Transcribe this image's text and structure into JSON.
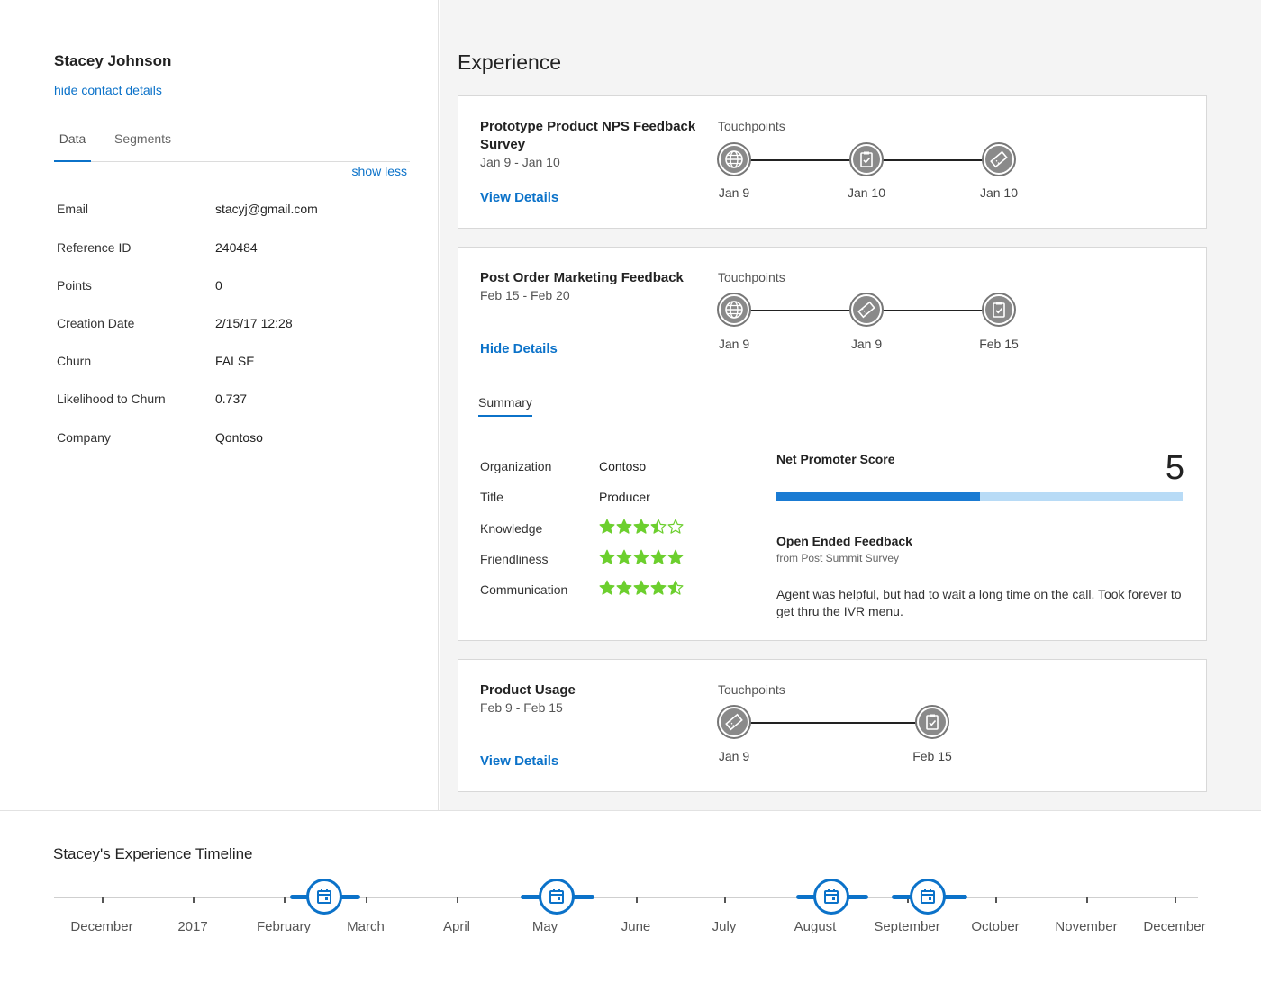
{
  "contact": {
    "name": "Stacey Johnson",
    "hide_details_label": "hide contact details",
    "tabs": [
      "Data",
      "Segments"
    ],
    "show_less_label": "show less",
    "fields": [
      {
        "label": "Email",
        "value": "stacyj@gmail.com"
      },
      {
        "label": "Reference ID",
        "value": "240484"
      },
      {
        "label": "Points",
        "value": "0"
      },
      {
        "label": "Creation Date",
        "value": "2/15/17 12:28"
      },
      {
        "label": "Churn",
        "value": "FALSE"
      },
      {
        "label": "Likelihood to Churn",
        "value": "0.737"
      },
      {
        "label": "Company",
        "value": "Qontoso"
      }
    ]
  },
  "experience": {
    "title": "Experience",
    "touchpoints_label": "Touchpoints",
    "cards": [
      {
        "title": "Prototype Product NPS Feedback Survey",
        "dates": "Jan 9 - Jan 10",
        "link": "View Details",
        "touchpoints": [
          {
            "icon": "globe-icon",
            "date": "Jan 9"
          },
          {
            "icon": "clipboard-icon",
            "date": "Jan 10"
          },
          {
            "icon": "ticket-icon",
            "date": "Jan 10"
          }
        ]
      },
      {
        "title": "Post Order Marketing Feedback",
        "dates": "Feb 15 - Feb 20",
        "link": "Hide Details",
        "touchpoints": [
          {
            "icon": "globe-icon",
            "date": "Jan 9"
          },
          {
            "icon": "ticket-icon",
            "date": "Jan 9"
          },
          {
            "icon": "clipboard-icon",
            "date": "Feb 15"
          }
        ],
        "summary": {
          "tab": "Summary",
          "organization_label": "Organization",
          "organization": "Contoso",
          "title_label": "Title",
          "title": "Producer",
          "ratings": [
            {
              "label": "Knowledge",
              "stars": 3.5,
              "max": 5
            },
            {
              "label": "Friendliness",
              "stars": 5,
              "max": 5
            },
            {
              "label": "Communication",
              "stars": 4.5,
              "max": 5
            }
          ],
          "nps_label": "Net Promoter Score",
          "nps_score": "5",
          "nps_fraction": 0.5,
          "feedback_title": "Open Ended Feedback",
          "feedback_source": "from Post Summit Survey",
          "feedback_text": "Agent was helpful, but had to wait a long time on the call. Took forever to get thru the IVR menu."
        }
      },
      {
        "title": "Product Usage",
        "dates": "Feb 9 - Feb 15",
        "link": "View Details",
        "touchpoints": [
          {
            "icon": "ticket-icon",
            "date": "Jan 9"
          },
          {
            "icon": "clipboard-icon",
            "date": "Feb 15"
          }
        ]
      }
    ]
  },
  "timeline": {
    "title": "Stacey's Experience Timeline",
    "labels": [
      "December",
      "2017",
      "February",
      "March",
      "April",
      "May",
      "June",
      "July",
      "August",
      "September",
      "October",
      "November",
      "December"
    ],
    "marker_icon": "calendar-icon"
  },
  "colors": {
    "accent": "#0b72c9",
    "star": "#6ccf2e",
    "nps_fill": "#1a7bd3",
    "nps_track": "#b8dbf6"
  }
}
